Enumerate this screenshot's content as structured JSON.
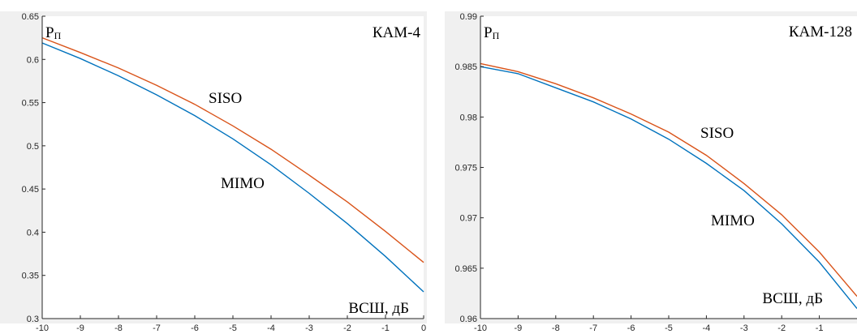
{
  "chart_data": [
    {
      "type": "line",
      "title": "",
      "xlabel": "ВСШ, дБ",
      "ylabel_main": "P",
      "ylabel_sub": "П",
      "modulation_label": "КАМ-4",
      "xlim": [
        -10,
        0
      ],
      "ylim": [
        0.3,
        0.65
      ],
      "xticks": [
        "-10",
        "-9",
        "-8",
        "-7",
        "-6",
        "-5",
        "-4",
        "-3",
        "-2",
        "-1",
        "0"
      ],
      "yticks": [
        "0.3",
        "0.35",
        "0.4",
        "0.45",
        "0.5",
        "0.55",
        "0.6",
        "0.65"
      ],
      "grid": false,
      "series": [
        {
          "name": "SISO",
          "color": "#d95319",
          "x": [
            -10,
            -9,
            -8,
            -7,
            -6,
            -5,
            -4,
            -3,
            -2,
            -1,
            0
          ],
          "y": [
            0.625,
            0.608,
            0.59,
            0.57,
            0.548,
            0.523,
            0.496,
            0.466,
            0.435,
            0.401,
            0.365
          ]
        },
        {
          "name": "MIMO",
          "color": "#0072bd",
          "x": [
            -10,
            -9,
            -8,
            -7,
            -6,
            -5,
            -4,
            -3,
            -2,
            -1,
            0
          ],
          "y": [
            0.619,
            0.601,
            0.581,
            0.559,
            0.535,
            0.508,
            0.478,
            0.445,
            0.41,
            0.372,
            0.331
          ]
        }
      ]
    },
    {
      "type": "line",
      "title": "",
      "xlabel": "ВСШ, дБ",
      "ylabel_main": "P",
      "ylabel_sub": "П",
      "modulation_label": "КАМ-128",
      "xlim": [
        -10,
        0
      ],
      "ylim": [
        0.96,
        0.99
      ],
      "xticks": [
        "-10",
        "-9",
        "-8",
        "-7",
        "-6",
        "-5",
        "-4",
        "-3",
        "-2",
        "-1"
      ],
      "yticks": [
        "0.96",
        "0.965",
        "0.97",
        "0.975",
        "0.98",
        "0.985",
        "0.99"
      ],
      "grid": false,
      "series": [
        {
          "name": "SISO",
          "color": "#d95319",
          "x": [
            -10,
            -9,
            -8,
            -7,
            -6,
            -5,
            -4,
            -3,
            -2,
            -1,
            0
          ],
          "y": [
            0.9853,
            0.9845,
            0.9833,
            0.9819,
            0.9803,
            0.9785,
            0.9762,
            0.9734,
            0.9703,
            0.9666,
            0.9622
          ]
        },
        {
          "name": "MIMO",
          "color": "#0072bd",
          "x": [
            -10,
            -9,
            -8,
            -7,
            -6,
            -5,
            -4,
            -3,
            -2,
            -1,
            0
          ],
          "y": [
            0.985,
            0.9843,
            0.9829,
            0.9815,
            0.9798,
            0.9778,
            0.9754,
            0.9727,
            0.9694,
            0.9656,
            0.961
          ]
        }
      ]
    }
  ]
}
